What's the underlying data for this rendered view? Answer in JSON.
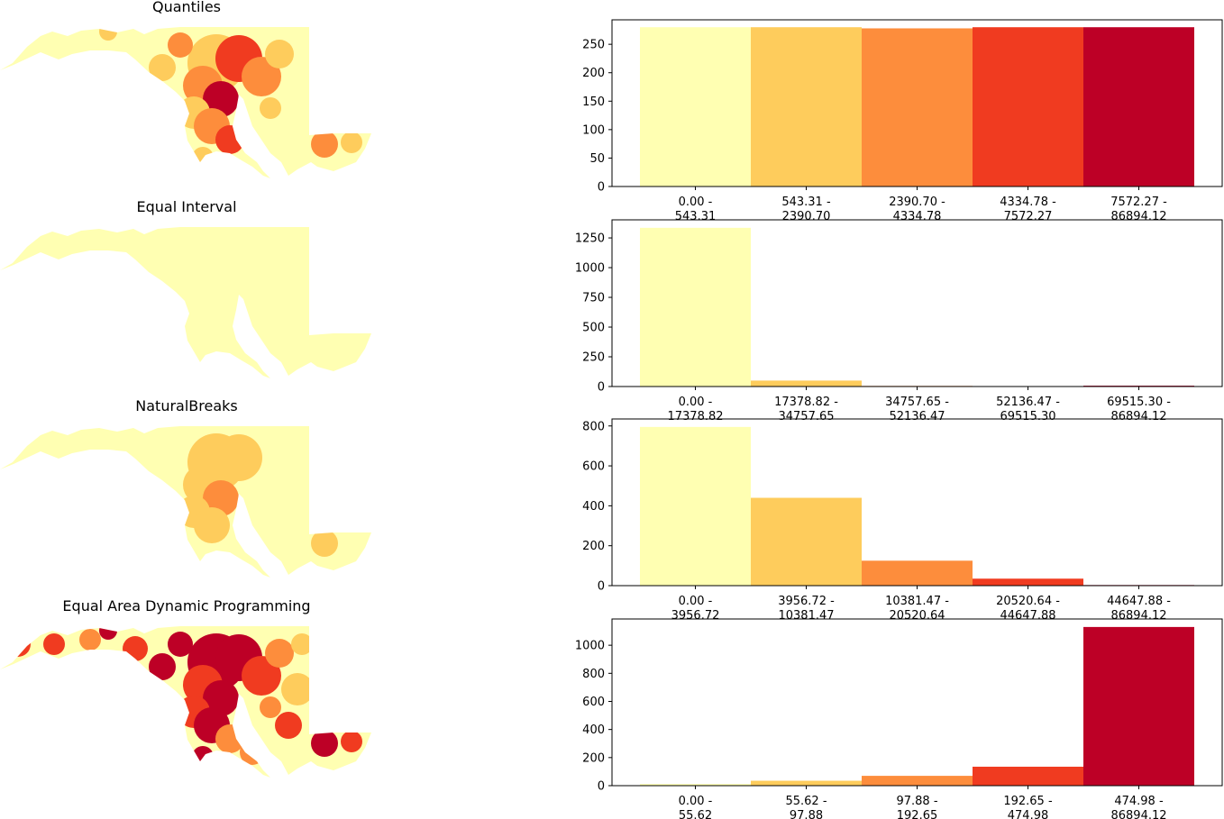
{
  "figure": {
    "colors": [
      "#ffffb2",
      "#fecc5c",
      "#fd8d3c",
      "#f03b20",
      "#bd0026"
    ]
  },
  "panels": [
    {
      "title": "Quantiles",
      "map_icon": "choropleth-map"
    },
    {
      "title": "Equal Interval",
      "map_icon": "choropleth-map"
    },
    {
      "title": "NaturalBreaks",
      "map_icon": "choropleth-map"
    },
    {
      "title": "Equal Area Dynamic Programming",
      "map_icon": "choropleth-map"
    }
  ],
  "chart_data": [
    {
      "type": "bar",
      "categories": [
        "0.00 -\n543.31",
        "543.31 -\n2390.70",
        "2390.70 -\n4334.78",
        "4334.78 -\n7572.27",
        "7572.27 -\n86894.12"
      ],
      "values": [
        280,
        280,
        278,
        280,
        280
      ],
      "ylim": [
        0,
        293
      ],
      "yticks": [
        0,
        50,
        100,
        150,
        200,
        250
      ]
    },
    {
      "type": "bar",
      "categories": [
        "0.00 -\n17378.82",
        "17378.82 -\n34757.65",
        "34757.65 -\n52136.47",
        "52136.47 -\n69515.30",
        "69515.30 -\n86894.12"
      ],
      "values": [
        1335,
        50,
        5,
        1,
        7
      ],
      "ylim": [
        0,
        1402
      ],
      "yticks": [
        0,
        250,
        500,
        750,
        1000,
        1250
      ]
    },
    {
      "type": "bar",
      "categories": [
        "0.00 -\n3956.72",
        "3956.72 -\n10381.47",
        "10381.47 -\n20520.64",
        "20520.64 -\n44647.88",
        "44647.88 -\n86894.12"
      ],
      "values": [
        795,
        440,
        125,
        35,
        3
      ],
      "ylim": [
        0,
        835
      ],
      "yticks": [
        0,
        200,
        400,
        600,
        800
      ]
    },
    {
      "type": "bar",
      "categories": [
        "0.00 -\n55.62",
        "55.62 -\n97.88",
        "97.88 -\n192.65",
        "192.65 -\n474.98",
        "474.98 -\n86894.12"
      ],
      "values": [
        12,
        35,
        70,
        135,
        1130
      ],
      "ylim": [
        0,
        1187
      ],
      "yticks": [
        0,
        200,
        400,
        600,
        800,
        1000
      ]
    }
  ]
}
